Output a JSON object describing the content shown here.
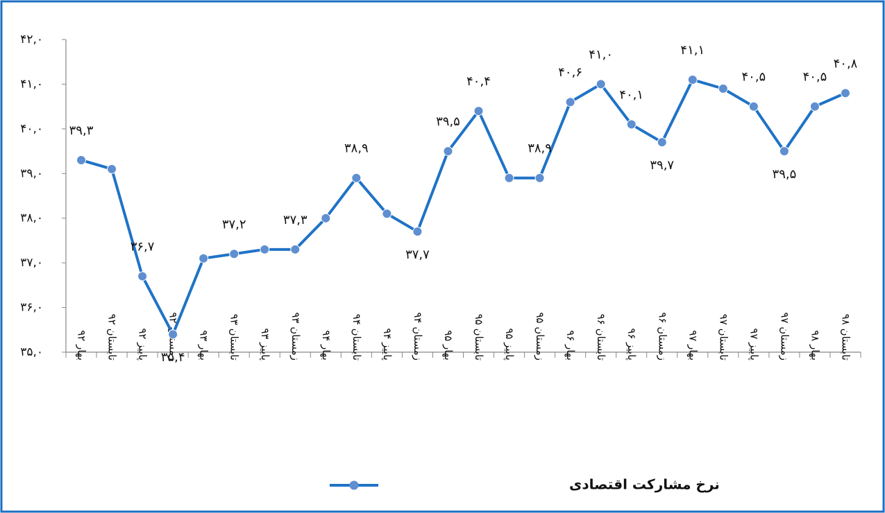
{
  "chart_data": {
    "type": "line",
    "categories": [
      "بهار ۹۲",
      "تابستان ۹۲",
      "پاییز ۹۲",
      "زمستان ۹۲",
      "بهار ۹۳",
      "تابستان ۹۳",
      "پاییز ۹۳",
      "زمستان ۹۳",
      "بهار ۹۴",
      "تابستان ۹۴",
      "پاییز ۹۴",
      "زمستان ۹۴",
      "بهار ۹۵",
      "تابستان ۹۵",
      "پاییز ۹۵",
      "زمستان ۹۵",
      "بهار ۹۶",
      "تابستان ۹۶",
      "پاییز ۹۶",
      "زمستان ۹۶",
      "بهار ۹۷",
      "تابستان ۹۷",
      "پاییز ۹۷",
      "زمستان ۹۷",
      "بهار ۹۸",
      "تابستان ۹۸"
    ],
    "series": [
      {
        "name": "نرخ مشارکت اقتصادی",
        "color": "#1f73c6",
        "marker_color": "#5f8fd0",
        "values": [
          39.3,
          39.1,
          36.7,
          35.4,
          37.1,
          37.2,
          37.3,
          37.3,
          38.0,
          38.9,
          38.1,
          37.7,
          39.5,
          40.4,
          38.9,
          38.9,
          40.6,
          41.0,
          40.1,
          39.7,
          41.1,
          40.9,
          40.5,
          39.5,
          40.5,
          40.8
        ],
        "value_labels": [
          "۳۹,۳",
          null,
          "۳۶,۷",
          "۳۵,۴",
          null,
          "۳۷,۲",
          null,
          "۳۷,۳",
          null,
          "۳۸,۹",
          null,
          "۳۷,۷",
          "۳۹,۵",
          "۴۰,۴",
          null,
          "۳۸,۹",
          "۴۰,۶",
          "۴۱,۰",
          "۴۰,۱",
          "۳۹,۷",
          "۴۱,۱",
          null,
          "۴۰,۵",
          "۳۹,۵",
          "۴۰,۵",
          "۴۰,۸"
        ]
      }
    ],
    "ylim": [
      35,
      42
    ],
    "yticks": [
      {
        "value": 35,
        "label": "۳۵,۰"
      },
      {
        "value": 36,
        "label": "۳۶,۰"
      },
      {
        "value": 37,
        "label": "۳۷,۰"
      },
      {
        "value": 38,
        "label": "۳۸,۰"
      },
      {
        "value": 39,
        "label": "۳۹,۰"
      },
      {
        "value": 40,
        "label": "۴۰,۰"
      },
      {
        "value": 41,
        "label": "۴۱,۰"
      },
      {
        "value": 42,
        "label": "۴۲,۰"
      }
    ],
    "grid": false,
    "legend": "bottom"
  }
}
